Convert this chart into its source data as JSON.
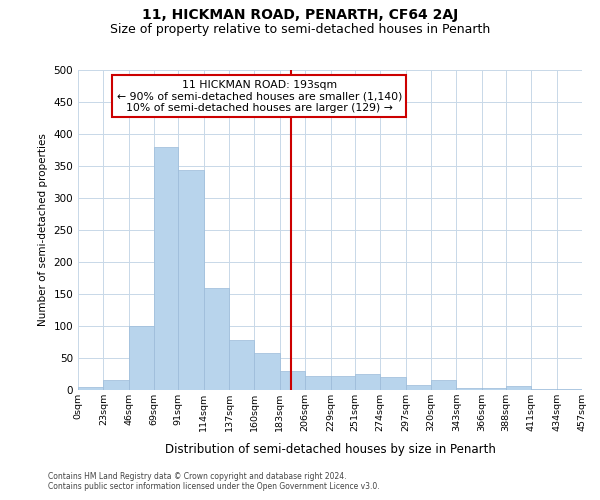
{
  "title": "11, HICKMAN ROAD, PENARTH, CF64 2AJ",
  "subtitle": "Size of property relative to semi-detached houses in Penarth",
  "xlabel": "Distribution of semi-detached houses by size in Penarth",
  "ylabel": "Number of semi-detached properties",
  "bin_edges": [
    0,
    23,
    46,
    69,
    91,
    114,
    137,
    160,
    183,
    206,
    229,
    251,
    274,
    297,
    320,
    343,
    366,
    388,
    411,
    434,
    457
  ],
  "bar_heights": [
    5,
    15,
    100,
    380,
    343,
    160,
    78,
    58,
    30,
    22,
    22,
    25,
    20,
    8,
    15,
    3,
    3,
    7,
    2,
    2
  ],
  "bar_color": "#b8d4ec",
  "bar_edge_color": "#9bbbd9",
  "vline_x": 193,
  "vline_color": "#cc0000",
  "annotation_title": "11 HICKMAN ROAD: 193sqm",
  "annotation_line1": "← 90% of semi-detached houses are smaller (1,140)",
  "annotation_line2": "10% of semi-detached houses are larger (129) →",
  "annotation_box_color": "#ffffff",
  "annotation_box_edge": "#cc0000",
  "ylim": [
    0,
    500
  ],
  "xlim": [
    0,
    457
  ],
  "yticks": [
    0,
    50,
    100,
    150,
    200,
    250,
    300,
    350,
    400,
    450,
    500
  ],
  "xtick_labels": [
    "0sqm",
    "23sqm",
    "46sqm",
    "69sqm",
    "91sqm",
    "114sqm",
    "137sqm",
    "160sqm",
    "183sqm",
    "206sqm",
    "229sqm",
    "251sqm",
    "274sqm",
    "297sqm",
    "320sqm",
    "343sqm",
    "366sqm",
    "388sqm",
    "411sqm",
    "434sqm",
    "457sqm"
  ],
  "footer1": "Contains HM Land Registry data © Crown copyright and database right 2024.",
  "footer2": "Contains public sector information licensed under the Open Government Licence v3.0.",
  "background_color": "#ffffff",
  "grid_color": "#c8d8e8",
  "title_fontsize": 10,
  "subtitle_fontsize": 9
}
